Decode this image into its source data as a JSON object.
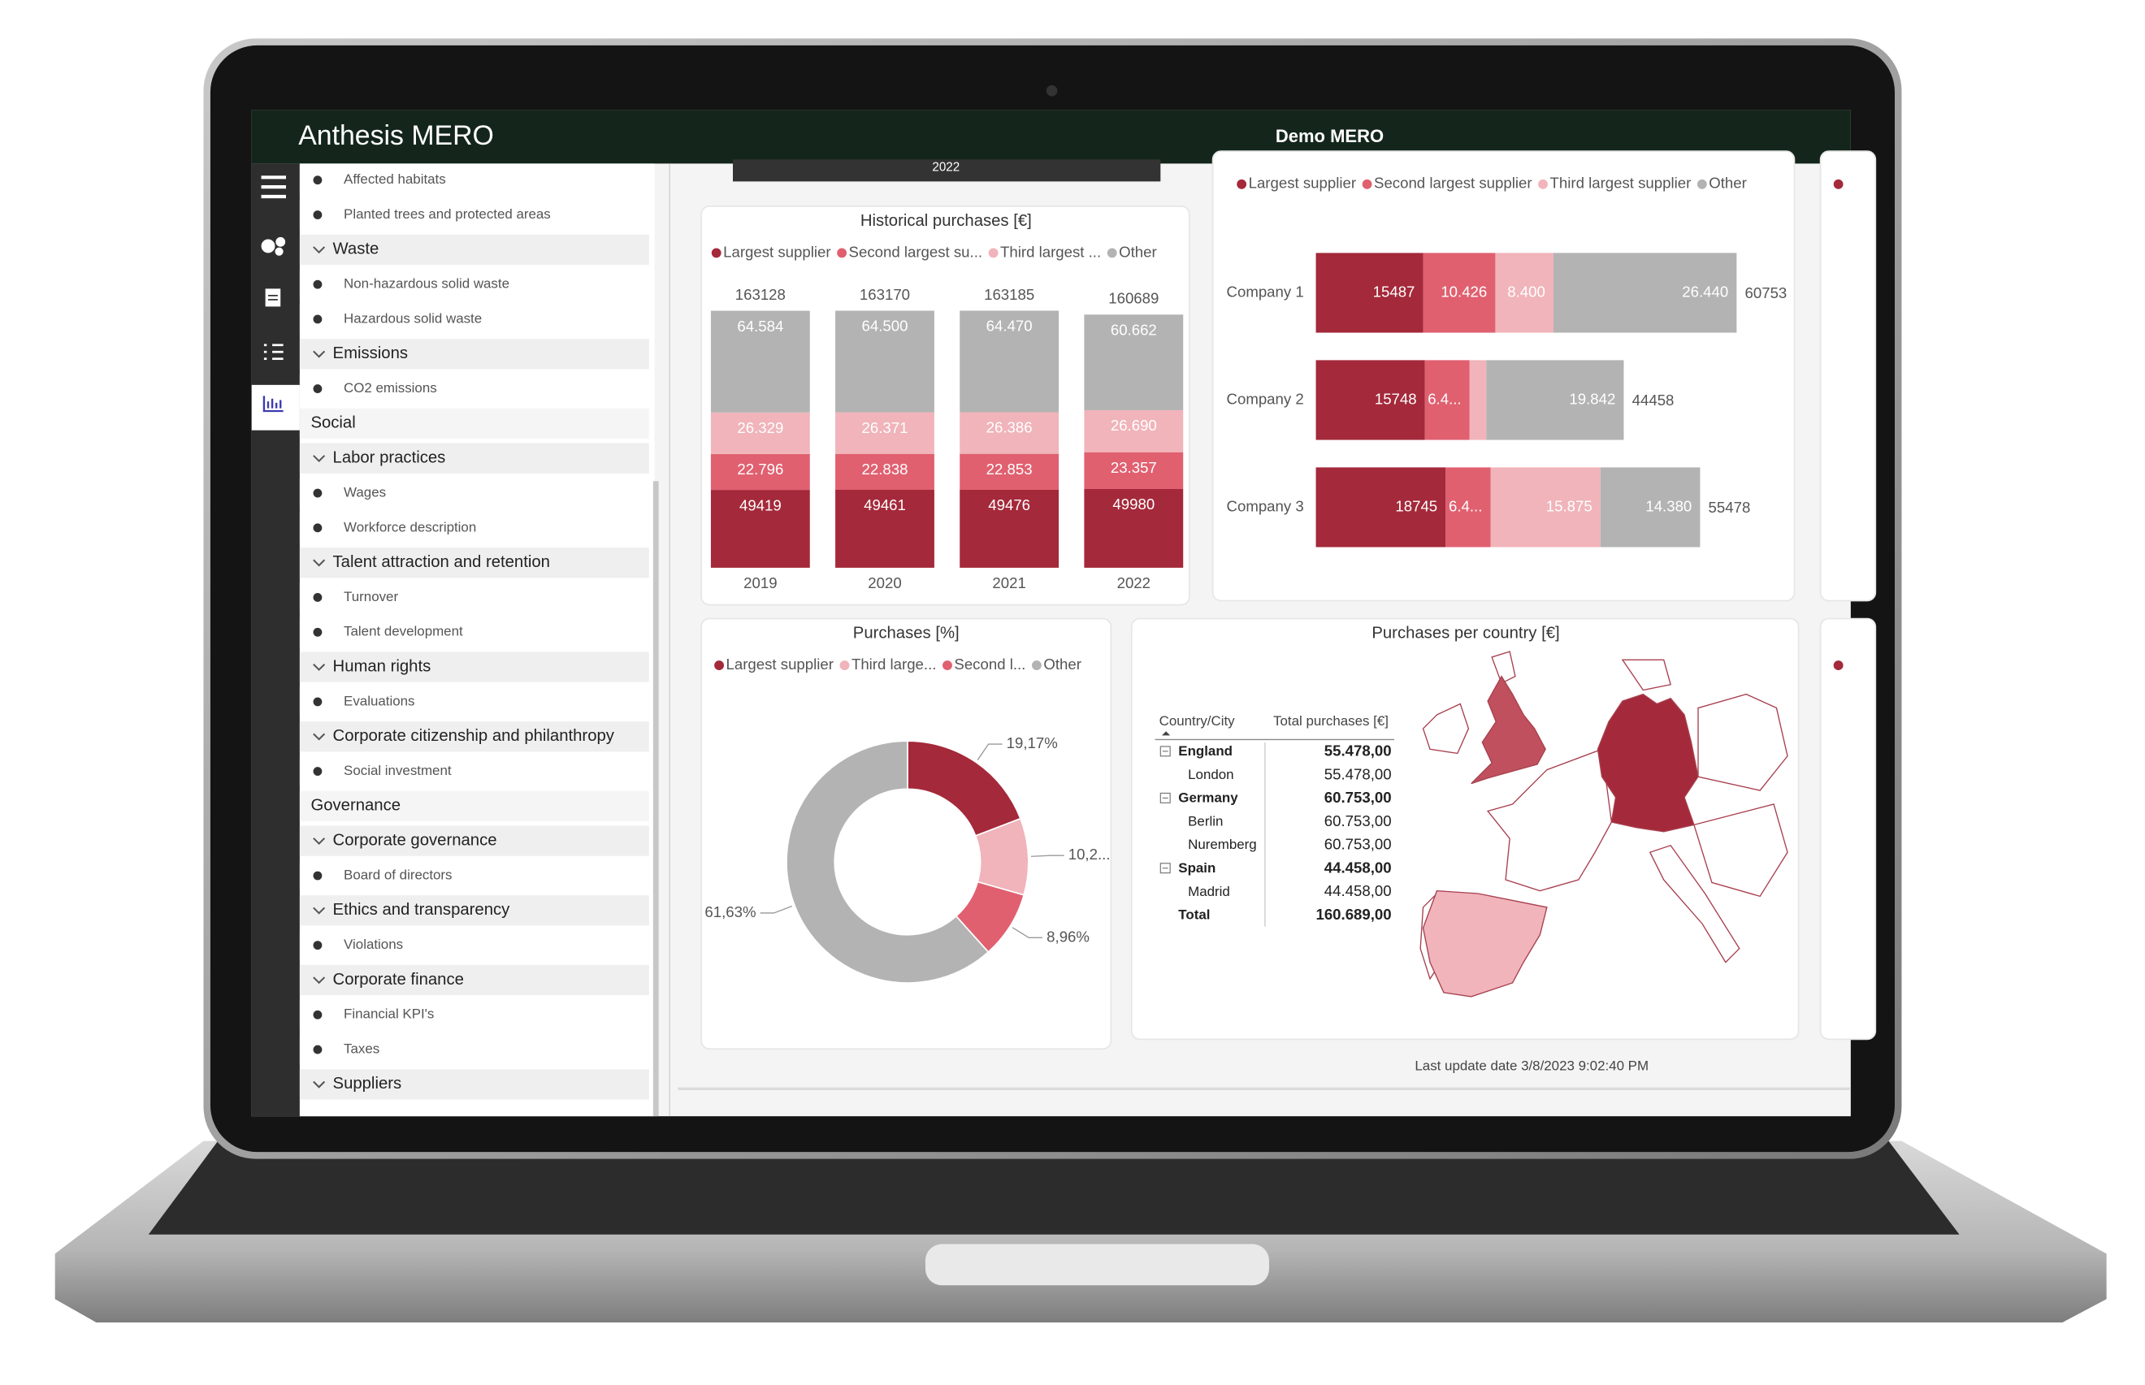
{
  "header": {
    "brand": "Anthesis MERO",
    "project": "Demo MERO"
  },
  "year_filter": "2022",
  "sidebar": [
    {
      "label": "Affected habitats",
      "kind": "item"
    },
    {
      "label": "Planted trees and protected areas",
      "kind": "item"
    },
    {
      "label": "Waste",
      "kind": "group"
    },
    {
      "label": "Non-hazardous solid waste",
      "kind": "item"
    },
    {
      "label": "Hazardous solid waste",
      "kind": "item"
    },
    {
      "label": "Emissions",
      "kind": "group"
    },
    {
      "label": "CO2 emissions",
      "kind": "item"
    },
    {
      "label": "Social",
      "kind": "section"
    },
    {
      "label": "Labor practices",
      "kind": "group"
    },
    {
      "label": "Wages",
      "kind": "item"
    },
    {
      "label": "Workforce description",
      "kind": "item"
    },
    {
      "label": "Talent attraction and retention",
      "kind": "group"
    },
    {
      "label": "Turnover",
      "kind": "item"
    },
    {
      "label": "Talent development",
      "kind": "item"
    },
    {
      "label": "Human rights",
      "kind": "group"
    },
    {
      "label": "Evaluations",
      "kind": "item"
    },
    {
      "label": "Corporate citizenship and philanthropy",
      "kind": "group"
    },
    {
      "label": "Social investment",
      "kind": "item"
    },
    {
      "label": "Governance",
      "kind": "section"
    },
    {
      "label": "Corporate governance",
      "kind": "group"
    },
    {
      "label": "Board of directors",
      "kind": "item"
    },
    {
      "label": "Ethics and transparency",
      "kind": "group"
    },
    {
      "label": "Violations",
      "kind": "item"
    },
    {
      "label": "Corporate finance",
      "kind": "group"
    },
    {
      "label": "Financial KPI's",
      "kind": "item"
    },
    {
      "label": "Taxes",
      "kind": "item"
    },
    {
      "label": "Suppliers",
      "kind": "group"
    }
  ],
  "historical": {
    "type": "bar",
    "stacked": true,
    "title": "Historical purchases [€]",
    "categories": [
      "2019",
      "2020",
      "2021",
      "2022"
    ],
    "totals": [
      163128,
      163170,
      163185,
      160689
    ],
    "ylim": [
      0,
      163185
    ],
    "series": [
      {
        "name": "Largest supplier",
        "color": "#a4293a",
        "values": [
          49419,
          49461,
          49476,
          49980
        ]
      },
      {
        "name": "Second largest su...",
        "color": "#e06070",
        "values": [
          22796,
          22838,
          22853,
          23357
        ],
        "value_labels": [
          "22.796",
          "22.838",
          "22.853",
          "23.357"
        ]
      },
      {
        "name": "Third largest ...",
        "color": "#f0b4ba",
        "values": [
          26329,
          26371,
          26386,
          26690
        ],
        "value_labels": [
          "26.329",
          "26.371",
          "26.386",
          "26.690"
        ]
      },
      {
        "name": "Other",
        "color": "#b3b3b3",
        "values": [
          64584,
          64500,
          64470,
          60662
        ],
        "value_labels": [
          "64.584",
          "64.500",
          "64.470",
          "60.662"
        ]
      }
    ]
  },
  "suppliers": {
    "type": "bar",
    "stacked": true,
    "orientation": "horizontal",
    "categories": [
      "Company 1",
      "Company 2",
      "Company 3"
    ],
    "totals": [
      60753,
      44458,
      55478
    ],
    "xlim": [
      0,
      60753
    ],
    "series": [
      {
        "name": "Largest supplier",
        "color": "#a4293a",
        "values": [
          15487,
          15748,
          18745
        ]
      },
      {
        "name": "Second largest supplier",
        "color": "#e06070",
        "values": [
          10426,
          6450,
          6478
        ],
        "value_labels": [
          "10.426",
          "6.4...",
          "6.4..."
        ]
      },
      {
        "name": "Third largest supplier",
        "color": "#f0b4ba",
        "values": [
          8400,
          2418,
          15875
        ],
        "value_labels": [
          "8.400",
          null,
          "15.875"
        ]
      },
      {
        "name": "Other",
        "color": "#b3b3b3",
        "values": [
          26440,
          19842,
          14380
        ],
        "value_labels": [
          "26.440",
          "19.842",
          "14.380"
        ]
      }
    ]
  },
  "share": {
    "type": "pie",
    "donut": true,
    "title": "Purchases [%]",
    "categories": [
      "Largest supplier",
      "Third large...",
      "Second l...",
      "Other"
    ],
    "colors": [
      "#a4293a",
      "#f0b4ba",
      "#e06070",
      "#b3b3b3"
    ],
    "values": [
      19.17,
      10.24,
      8.96,
      61.63
    ],
    "value_labels": [
      "19,17%",
      "10,2...",
      "8,96%",
      "61,63%"
    ]
  },
  "country_table": {
    "title": "Purchases per country [€]",
    "columns": [
      "Country/City",
      "Total purchases [€]"
    ],
    "rows": [
      {
        "label": "England",
        "value": "55.478,00",
        "kind": "country"
      },
      {
        "label": "London",
        "value": "55.478,00",
        "kind": "city"
      },
      {
        "label": "Germany",
        "value": "60.753,00",
        "kind": "country"
      },
      {
        "label": "Berlin",
        "value": "60.753,00",
        "kind": "city"
      },
      {
        "label": "Nuremberg",
        "value": "60.753,00",
        "kind": "city"
      },
      {
        "label": "Spain",
        "value": "44.458,00",
        "kind": "country"
      },
      {
        "label": "Madrid",
        "value": "44.458,00",
        "kind": "city"
      },
      {
        "label": "Total",
        "value": "160.689,00",
        "kind": "total"
      }
    ]
  },
  "footer": "Last update date 3/8/2023 9:02:40 PM"
}
